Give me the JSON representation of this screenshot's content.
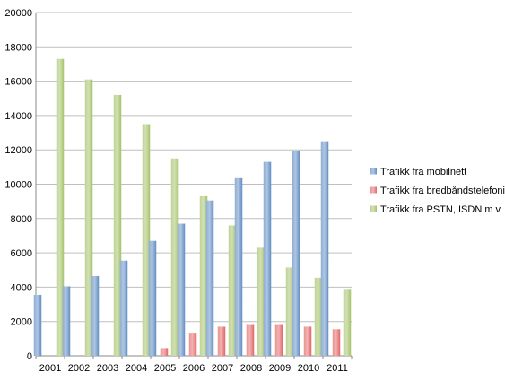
{
  "chart_data": {
    "type": "bar",
    "title": "",
    "xlabel": "",
    "ylabel": "",
    "categories": [
      "2001",
      "2002",
      "2003",
      "2004",
      "2005",
      "2006",
      "2007",
      "2008",
      "2009",
      "2010",
      "2011"
    ],
    "ylim": [
      0,
      20000
    ],
    "yticks": [
      0,
      2000,
      4000,
      6000,
      8000,
      10000,
      12000,
      14000,
      16000,
      18000,
      20000
    ],
    "grid": true,
    "legend_position": "right",
    "series": [
      {
        "name": "Trafikk fra mobilnett",
        "color": "#4F81BD",
        "values": [
          3550,
          4050,
          4650,
          5550,
          6700,
          7700,
          9050,
          10350,
          11300,
          11950,
          12500
        ]
      },
      {
        "name": "Trafikk fra bredbåndstelefoni",
        "color": "#E05555",
        "values": [
          0,
          0,
          0,
          0,
          450,
          1300,
          1700,
          1800,
          1800,
          1700,
          1550
        ]
      },
      {
        "name": "Trafikk fra PSTN, ISDN m v",
        "color": "#9BBB59",
        "values": [
          17300,
          16100,
          15200,
          13500,
          11500,
          9300,
          7600,
          6300,
          5150,
          4550,
          3850
        ]
      }
    ]
  }
}
